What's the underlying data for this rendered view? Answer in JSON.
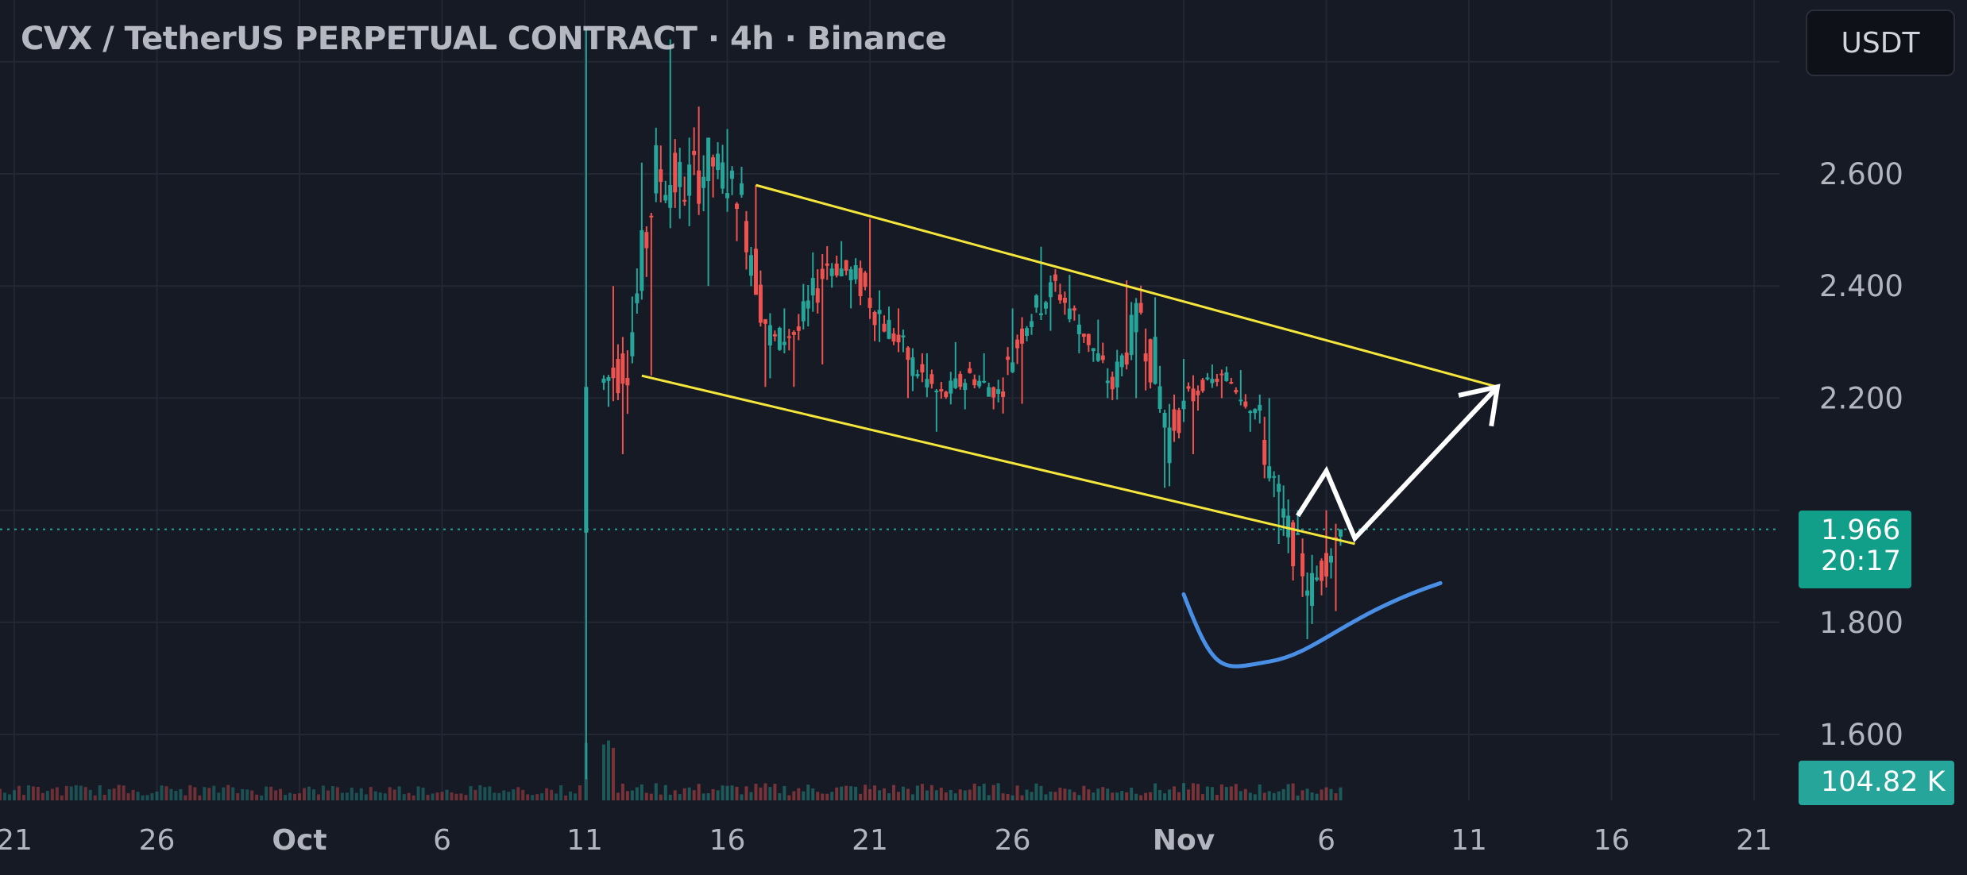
{
  "header": {
    "title": "CVX / TetherUS PERPETUAL CONTRACT · 4h · Binance",
    "currency_button": "USDT"
  },
  "price_badge": {
    "price": "1.966",
    "countdown": "20:17"
  },
  "volume_badge": {
    "value": "104.82 K"
  },
  "colors": {
    "background": "#161a25",
    "grid": "#232733",
    "up_candle": "#26a69a",
    "down_candle": "#ef5350",
    "channel_lines": "#f5e63c",
    "projection_arrow": "#ffffff",
    "rounded_bottom": "#4a8fe6",
    "axis_text": "#b2b5be"
  },
  "chart_data": {
    "type": "candlestick",
    "symbol": "CVX / TetherUS PERPETUAL CONTRACT",
    "interval": "4h",
    "exchange": "Binance",
    "x_axis": {
      "ticks": [
        {
          "date": "2023-09-21",
          "label": "21"
        },
        {
          "date": "2023-09-26",
          "label": "26"
        },
        {
          "date": "2023-10-01",
          "label": "Oct",
          "bold": true
        },
        {
          "date": "2023-10-06",
          "label": "6"
        },
        {
          "date": "2023-10-11",
          "label": "11"
        },
        {
          "date": "2023-10-16",
          "label": "16"
        },
        {
          "date": "2023-10-21",
          "label": "21"
        },
        {
          "date": "2023-10-26",
          "label": "26"
        },
        {
          "date": "2023-11-01",
          "label": "Nov",
          "bold": true
        },
        {
          "date": "2023-11-06",
          "label": "6"
        },
        {
          "date": "2023-11-11",
          "label": "11"
        },
        {
          "date": "2023-11-16",
          "label": "16"
        },
        {
          "date": "2023-11-21",
          "label": "21"
        }
      ],
      "range": [
        "2023-09-20",
        "2023-11-22"
      ]
    },
    "y_axis": {
      "ticks": [
        {
          "value": 1.6,
          "label": "1.600"
        },
        {
          "value": 1.8,
          "label": "1.800"
        },
        {
          "value": 2.2,
          "label": "2.200"
        },
        {
          "value": 2.4,
          "label": "2.400"
        },
        {
          "value": 2.6,
          "label": "2.600"
        }
      ],
      "grid_only_values": [
        2.0,
        2.8
      ],
      "range": [
        1.52,
        2.86
      ]
    },
    "last_price": 1.966,
    "ohlc_approx": [
      {
        "date": "2023-10-11",
        "open": 1.96,
        "high": 2.86,
        "low": 1.52,
        "close": 2.22
      },
      {
        "date": "2023-10-12",
        "open": 2.22,
        "high": 2.4,
        "low": 2.1,
        "close": 2.27
      },
      {
        "date": "2023-10-13",
        "open": 2.27,
        "high": 2.62,
        "low": 2.24,
        "close": 2.6
      },
      {
        "date": "2023-10-14",
        "open": 2.6,
        "high": 2.84,
        "low": 2.52,
        "close": 2.58
      },
      {
        "date": "2023-10-15",
        "open": 2.58,
        "high": 2.72,
        "low": 2.4,
        "close": 2.62
      },
      {
        "date": "2023-10-16",
        "open": 2.62,
        "high": 2.68,
        "low": 2.48,
        "close": 2.56
      },
      {
        "date": "2023-10-17",
        "open": 2.56,
        "high": 2.58,
        "low": 2.22,
        "close": 2.3
      },
      {
        "date": "2023-10-18",
        "open": 2.3,
        "high": 2.36,
        "low": 2.22,
        "close": 2.32
      },
      {
        "date": "2023-10-19",
        "open": 2.32,
        "high": 2.46,
        "low": 2.26,
        "close": 2.44
      },
      {
        "date": "2023-10-20",
        "open": 2.44,
        "high": 2.48,
        "low": 2.36,
        "close": 2.42
      },
      {
        "date": "2023-10-21",
        "open": 2.42,
        "high": 2.52,
        "low": 2.3,
        "close": 2.34
      },
      {
        "date": "2023-10-22",
        "open": 2.34,
        "high": 2.36,
        "low": 2.2,
        "close": 2.26
      },
      {
        "date": "2023-10-23",
        "open": 2.26,
        "high": 2.28,
        "low": 2.14,
        "close": 2.2
      },
      {
        "date": "2023-10-24",
        "open": 2.2,
        "high": 2.3,
        "low": 2.18,
        "close": 2.24
      },
      {
        "date": "2023-10-25",
        "open": 2.24,
        "high": 2.28,
        "low": 2.18,
        "close": 2.21
      },
      {
        "date": "2023-10-26",
        "open": 2.21,
        "high": 2.36,
        "low": 2.19,
        "close": 2.34
      },
      {
        "date": "2023-10-27",
        "open": 2.34,
        "high": 2.47,
        "low": 2.32,
        "close": 2.4
      },
      {
        "date": "2023-10-28",
        "open": 2.4,
        "high": 2.42,
        "low": 2.28,
        "close": 2.32
      },
      {
        "date": "2023-10-29",
        "open": 2.32,
        "high": 2.34,
        "low": 2.2,
        "close": 2.22
      },
      {
        "date": "2023-10-30",
        "open": 2.22,
        "high": 2.41,
        "low": 2.2,
        "close": 2.36
      },
      {
        "date": "2023-10-31",
        "open": 2.36,
        "high": 2.38,
        "low": 2.04,
        "close": 2.14
      },
      {
        "date": "2023-11-01",
        "open": 2.14,
        "high": 2.27,
        "low": 2.1,
        "close": 2.22
      },
      {
        "date": "2023-11-02",
        "open": 2.22,
        "high": 2.26,
        "low": 2.2,
        "close": 2.24
      },
      {
        "date": "2023-11-03",
        "open": 2.24,
        "high": 2.25,
        "low": 2.14,
        "close": 2.18
      },
      {
        "date": "2023-11-04",
        "open": 2.18,
        "high": 2.2,
        "low": 1.94,
        "close": 1.98
      },
      {
        "date": "2023-11-05",
        "open": 1.98,
        "high": 2.0,
        "low": 1.77,
        "close": 1.86
      },
      {
        "date": "2023-11-06",
        "open": 1.86,
        "high": 2.0,
        "low": 1.82,
        "close": 1.966
      }
    ],
    "drawings": [
      {
        "kind": "trend_line",
        "label": "channel_upper",
        "from": {
          "date": "2023-10-17",
          "price": 2.58
        },
        "to": {
          "date": "2023-11-12",
          "price": 2.22
        }
      },
      {
        "kind": "trend_line",
        "label": "channel_lower",
        "from": {
          "date": "2023-10-13",
          "price": 2.24
        },
        "to": {
          "date": "2023-11-07",
          "price": 1.94
        }
      },
      {
        "kind": "path_arrow",
        "label": "projection",
        "points": [
          {
            "date": "2023-11-05",
            "price": 1.99
          },
          {
            "date": "2023-11-06",
            "price": 2.07
          },
          {
            "date": "2023-11-07",
            "price": 1.95
          },
          {
            "date": "2023-11-12",
            "price": 2.22
          }
        ]
      },
      {
        "kind": "curve",
        "label": "rounded_bottom",
        "points": [
          {
            "date": "2023-11-01",
            "price": 1.85
          },
          {
            "date": "2023-11-04",
            "price": 1.73
          },
          {
            "date": "2023-11-10",
            "price": 1.87
          }
        ]
      }
    ],
    "volume": {
      "last_value": "104.82 K"
    }
  }
}
